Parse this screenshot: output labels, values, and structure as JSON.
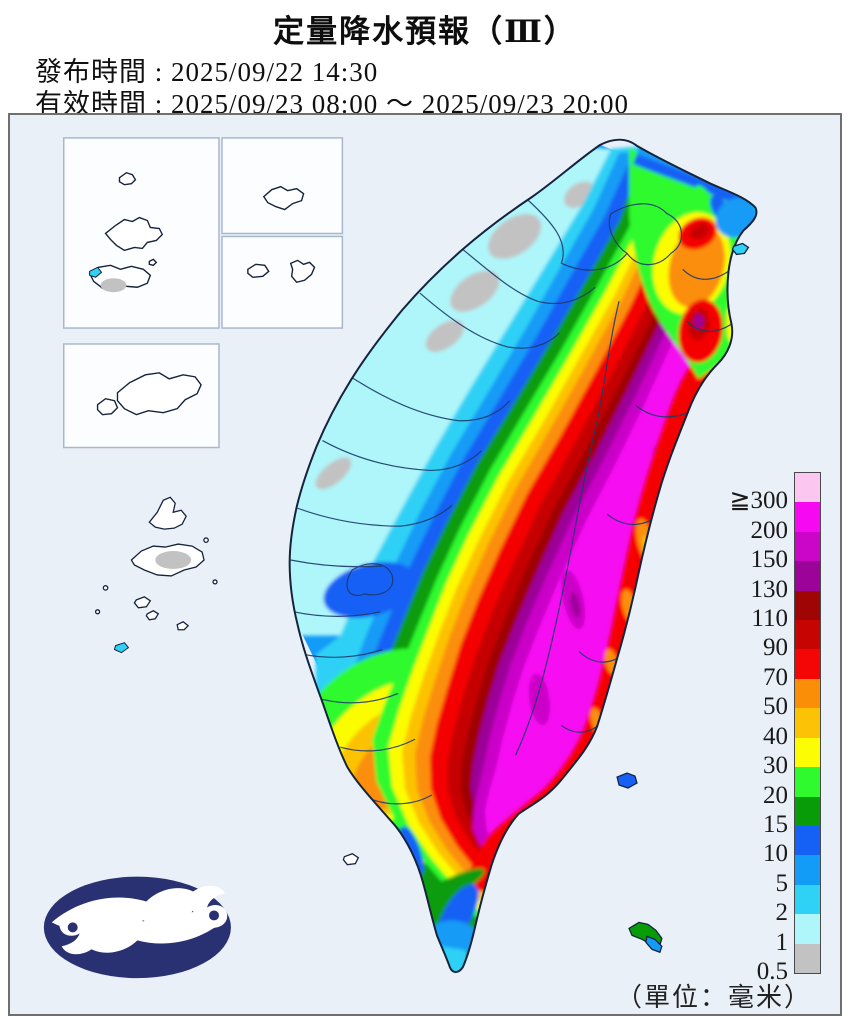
{
  "header": {
    "title": "定量降水預報（Ⅲ）",
    "issue_label": "發布時間 :",
    "issue_value": "2025/09/22 14:30",
    "valid_label": "有效時間 :",
    "valid_value": "2025/09/23 08:00 ～ 2025/09/23 20:00"
  },
  "legend": {
    "labels": [
      "≧300",
      "200",
      "150",
      "130",
      "110",
      "90",
      "70",
      "50",
      "40",
      "30",
      "20",
      "15",
      "10",
      "5",
      "2",
      "1",
      "0.5"
    ],
    "colors": [
      "#fbc7f0",
      "#f608f2",
      "#cb06c8",
      "#9c0399",
      "#9f0505",
      "#c60503",
      "#f40606",
      "#fb8e07",
      "#fcc205",
      "#fcfc04",
      "#2efa2e",
      "#089c08",
      "#1560f5",
      "#129bf7",
      "#2fd1f5",
      "#aef6fa",
      "#c2c2c2"
    ],
    "unit_label": "（單位：毫米）"
  },
  "map": {
    "background": "#eaf0f8",
    "frame_border": "#6f6f6f",
    "coastline": "#16233c",
    "county_line": "#1d3a6b",
    "inset_bg": "#fbfdff",
    "inset_border": "#a9b7cd",
    "island_fill": "#ffffff",
    "logo_color": "#2a3172",
    "logo_name": "中央氣象署"
  }
}
